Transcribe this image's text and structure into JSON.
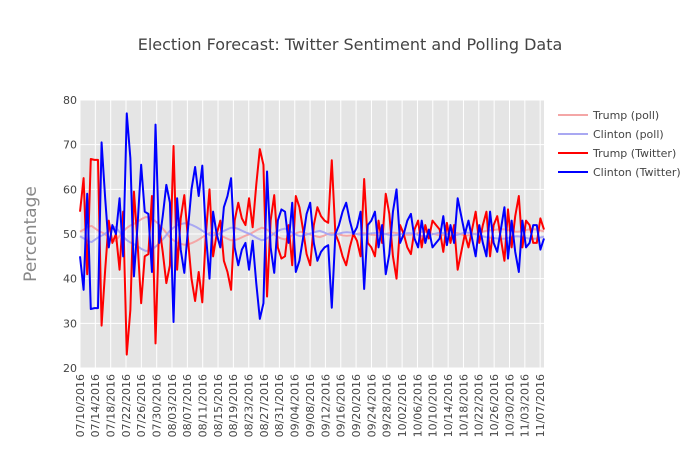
{
  "chart_data": {
    "type": "line",
    "title": "Election Forecast: Twitter Sentiment and Polling Data",
    "xlabel": "",
    "ylabel": "Percentage",
    "ylim": [
      20,
      80
    ],
    "y_ticks": [
      20,
      30,
      40,
      50,
      60,
      70,
      80
    ],
    "x_tick_labels": [
      "07/10/2016",
      "07/14/2016",
      "07/18/2016",
      "07/22/2016",
      "07/26/2016",
      "07/30/2016",
      "08/03/2016",
      "08/07/2016",
      "08/11/2016",
      "08/15/2016",
      "08/19/2016",
      "08/23/2016",
      "08/27/2016",
      "08/31/2016",
      "09/04/2016",
      "09/08/2016",
      "09/12/2016",
      "09/16/2016",
      "09/20/2016",
      "09/24/2016",
      "09/28/2016",
      "10/02/2016",
      "10/06/2016",
      "10/10/2016",
      "10/14/2016",
      "10/18/2016",
      "10/22/2016",
      "10/26/2016",
      "10/30/2016",
      "11/03/2016",
      "11/07/2016"
    ],
    "grid": true,
    "legend_position": "right",
    "start_date": "2016-07-10",
    "end_date": "2016-11-08",
    "series": [
      {
        "name": "Trump (poll)",
        "color": "#f4a6a6",
        "values": [
          50.5,
          51.0,
          51.6,
          51.8,
          51.2,
          50.6,
          50.2,
          49.6,
          49.0,
          48.4,
          49.3,
          50.4,
          51.3,
          51.9,
          52.3,
          52.8,
          53.4,
          53.8,
          53.7,
          53.2,
          52.5,
          51.6,
          50.6,
          49.5,
          48.7,
          48.1,
          47.8,
          47.6,
          47.7,
          48.0,
          48.4,
          48.9,
          49.5,
          50.0,
          50.4,
          50.2,
          49.9,
          49.4,
          49.0,
          48.6,
          48.6,
          48.9,
          49.3,
          49.7,
          50.0,
          50.5,
          51.0,
          51.4,
          51.2,
          50.6,
          50.0,
          49.4,
          49.0,
          48.8,
          49.2,
          49.8,
          50.2,
          50.5,
          50.3,
          50.0,
          49.8,
          49.5,
          49.3,
          49.6,
          50.0,
          50.2,
          50.1,
          49.9,
          49.7,
          49.6,
          49.7,
          49.9,
          50.1,
          50.2,
          50.1,
          49.9,
          49.8,
          49.7,
          49.8,
          50.0,
          50.2,
          50.3,
          50.2,
          50.0,
          49.9,
          49.8,
          49.9,
          50.1,
          50.3,
          50.5,
          50.4,
          50.1,
          49.9,
          49.7,
          49.8,
          50.0,
          50.2,
          50.3,
          50.1,
          49.8,
          49.7,
          49.8,
          50.0,
          50.2,
          50.5,
          50.7,
          50.8,
          50.9,
          51.0,
          51.1,
          51.0,
          50.8,
          50.6,
          50.5,
          50.6,
          50.8,
          51.0,
          51.1,
          51.0,
          50.8,
          50.6
        ]
      },
      {
        "name": "Clinton (poll)",
        "color": "#a9a8f2",
        "values": [
          49.5,
          49.0,
          48.4,
          48.2,
          48.8,
          49.4,
          49.8,
          50.4,
          51.0,
          51.6,
          50.7,
          49.6,
          48.7,
          48.1,
          47.7,
          47.2,
          46.6,
          46.2,
          46.3,
          46.8,
          47.5,
          48.4,
          49.4,
          50.5,
          51.3,
          51.9,
          52.2,
          52.4,
          52.3,
          52.0,
          51.6,
          51.1,
          50.5,
          50.0,
          49.6,
          49.8,
          50.1,
          50.6,
          51.0,
          51.4,
          51.4,
          51.1,
          50.7,
          50.3,
          50.0,
          49.5,
          49.0,
          48.6,
          48.8,
          49.4,
          50.0,
          50.6,
          51.0,
          51.2,
          50.8,
          50.2,
          49.8,
          49.5,
          49.7,
          50.0,
          50.2,
          50.5,
          50.7,
          50.4,
          50.0,
          49.8,
          49.9,
          50.1,
          50.3,
          50.4,
          50.3,
          50.1,
          49.9,
          49.8,
          49.9,
          50.1,
          50.2,
          50.3,
          50.2,
          50.0,
          49.8,
          49.7,
          49.8,
          50.0,
          50.1,
          50.2,
          50.1,
          49.9,
          49.7,
          49.5,
          49.6,
          49.9,
          50.1,
          50.3,
          50.2,
          50.0,
          49.8,
          49.7,
          49.9,
          50.2,
          50.3,
          50.2,
          50.0,
          49.8,
          49.5,
          49.3,
          49.2,
          49.1,
          49.0,
          48.9,
          49.0,
          49.2,
          49.4,
          49.5,
          49.4,
          49.2,
          49.0,
          48.9,
          49.0,
          49.2,
          49.4
        ]
      },
      {
        "name": "Trump (Twitter)",
        "color": "#ff0000",
        "values": [
          55,
          62.5,
          41,
          66.8,
          66.6,
          66.6,
          29.5,
          42,
          53,
          48,
          50,
          42,
          55,
          23,
          33,
          59.5,
          48,
          34.5,
          45,
          45.5,
          58.5,
          25.5,
          52,
          46,
          39,
          43,
          69.7,
          42,
          53.5,
          58.7,
          49,
          40,
          35,
          41.5,
          34.7,
          50,
          60,
          45,
          50,
          53,
          44,
          41.5,
          37.5,
          53,
          57,
          53.5,
          52,
          58,
          51.5,
          61,
          69,
          65.5,
          36,
          53,
          58.7,
          47,
          44.5,
          45,
          52,
          43,
          58.5,
          56,
          51,
          45.5,
          43,
          52,
          56,
          54,
          53,
          52.5,
          66.5,
          50,
          48,
          45,
          43,
          47,
          50,
          48.5,
          45,
          62.3,
          48,
          47,
          45,
          53,
          48,
          59,
          54.5,
          45,
          40,
          52,
          50,
          47,
          45.5,
          51,
          53,
          47,
          52,
          49,
          53,
          52,
          51,
          46,
          52.5,
          48,
          52,
          42,
          46,
          50,
          47,
          51,
          55,
          48,
          52,
          55,
          45,
          52,
          54,
          49,
          44,
          55.5,
          47,
          54,
          58.5,
          47,
          53,
          52,
          48,
          48,
          53.5,
          51
        ]
      },
      {
        "name": "Clinton (Twitter)",
        "color": "#0000ff",
        "values": [
          45,
          37.5,
          59,
          33.2,
          33.4,
          33.4,
          70.5,
          58,
          47,
          52,
          50,
          58,
          45,
          77,
          67,
          40.5,
          52,
          65.5,
          55,
          54.5,
          41.5,
          74.5,
          48,
          54,
          61,
          57,
          30.3,
          58,
          46.5,
          41.3,
          51,
          60,
          65,
          58.5,
          65.3,
          50,
          40,
          55,
          50,
          47,
          56,
          58.5,
          62.5,
          47,
          43,
          46.5,
          48,
          42,
          48.5,
          39,
          31,
          34.5,
          64,
          47,
          41.3,
          53,
          55.5,
          55,
          48,
          57,
          41.5,
          44,
          49,
          54.5,
          57,
          48,
          44,
          46,
          47,
          47.5,
          33.5,
          50,
          52,
          55,
          57,
          53,
          50,
          51.5,
          55,
          37.7,
          52,
          53,
          55,
          47,
          52,
          41,
          45.5,
          55,
          60,
          48,
          50,
          53,
          54.5,
          49,
          47,
          53,
          48,
          51,
          47,
          48,
          49,
          54,
          47.5,
          52,
          48,
          58,
          54,
          50,
          53,
          49,
          45,
          52,
          48,
          45,
          55,
          48,
          46,
          51,
          56,
          44.5,
          53,
          46,
          41.5,
          53,
          47,
          48,
          52,
          52,
          46.5,
          49
        ]
      }
    ]
  }
}
